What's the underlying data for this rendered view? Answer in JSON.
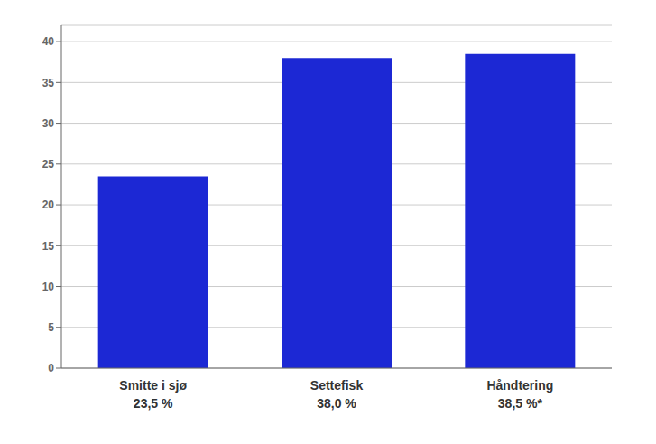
{
  "chart_data": {
    "type": "bar",
    "categories": [
      "Smitte i sjø",
      "Settefisk",
      "Håndtering"
    ],
    "values": [
      23.5,
      38.0,
      38.5
    ],
    "value_labels": [
      "23,5 %",
      "38,0 %",
      "38,5 %*"
    ],
    "color": "#1c28d4",
    "ylim": [
      0,
      42
    ],
    "yticks": [
      0,
      5,
      10,
      15,
      20,
      25,
      30,
      35,
      40
    ],
    "grid": true
  }
}
